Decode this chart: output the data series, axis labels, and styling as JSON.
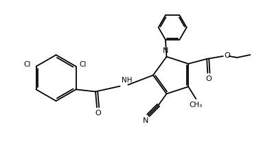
{
  "background_color": "#ffffff",
  "line_color": "#000000",
  "figsize": [
    3.96,
    2.39
  ],
  "dpi": 100,
  "lw": 1.3,
  "xlim": [
    0,
    10
  ],
  "ylim": [
    0,
    6
  ]
}
